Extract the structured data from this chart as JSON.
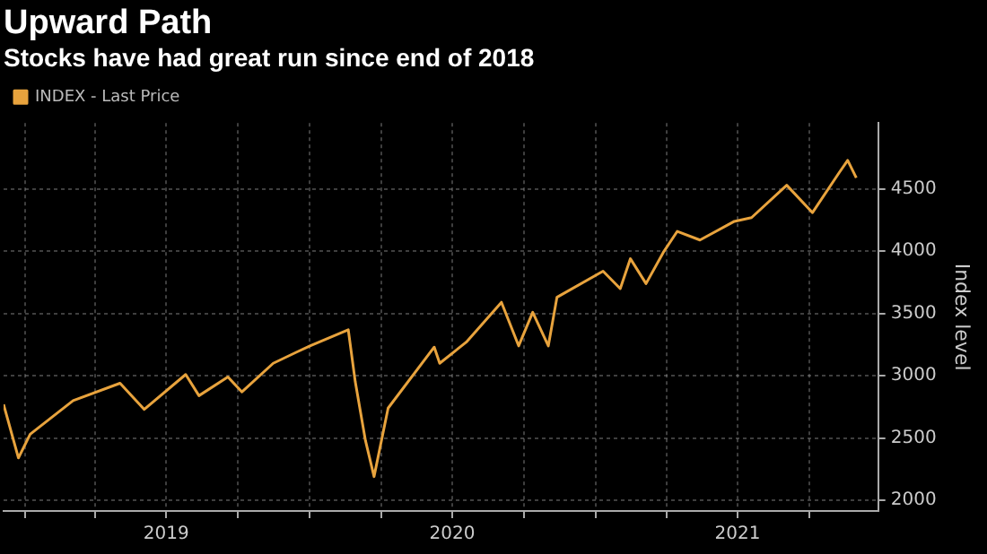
{
  "chart_data": {
    "type": "line",
    "title": "Upward Path",
    "subtitle": "Stocks have had great run since end of 2018",
    "ylabel": "Index level",
    "legend": "top left",
    "grid": true,
    "marker": "none",
    "line_style": "solid",
    "xlim": [
      "2018-12-05",
      "2021-12-28"
    ],
    "xticks": [
      {
        "value": "2019-01-01",
        "label": null
      },
      {
        "value": "2019-04-01",
        "label": null
      },
      {
        "value": "2019-07-01",
        "label": "2019"
      },
      {
        "value": "2019-10-01",
        "label": null
      },
      {
        "value": "2020-01-01",
        "label": null
      },
      {
        "value": "2020-04-01",
        "label": null
      },
      {
        "value": "2020-07-01",
        "label": "2020"
      },
      {
        "value": "2020-10-01",
        "label": null
      },
      {
        "value": "2021-01-01",
        "label": null
      },
      {
        "value": "2021-04-01",
        "label": null
      },
      {
        "value": "2021-07-01",
        "label": "2021"
      },
      {
        "value": "2021-10-01",
        "label": null
      }
    ],
    "ylim": [
      1914,
      5030
    ],
    "yticks": [
      2000,
      2500,
      3000,
      3500,
      4000,
      4500
    ],
    "x": [
      "2018-12-05",
      "2018-12-24",
      "2019-01-08",
      "2019-03-04",
      "2019-05-03",
      "2019-06-03",
      "2019-07-26",
      "2019-08-12",
      "2019-09-18",
      "2019-10-06",
      "2019-11-15",
      "2019-12-15",
      "2020-01-01",
      "2020-02-19",
      "2020-02-28",
      "2020-03-12",
      "2020-03-23",
      "2020-04-10",
      "2020-06-08",
      "2020-06-15",
      "2020-07-19",
      "2020-09-02",
      "2020-09-24",
      "2020-10-12",
      "2020-11-01",
      "2020-11-12",
      "2021-01-10",
      "2021-02-01",
      "2021-02-14",
      "2021-03-06",
      "2021-03-28",
      "2021-04-15",
      "2021-05-14",
      "2021-06-27",
      "2021-07-19",
      "2021-09-02",
      "2021-10-05",
      "2021-11-08",
      "2021-11-19",
      "2021-11-30"
    ],
    "series": [
      {
        "name": "INDEX - Last Price",
        "color": "#e8a33d",
        "values": [
          2770,
          2340,
          2530,
          2800,
          2940,
          2730,
          3010,
          2840,
          2990,
          2870,
          3100,
          3190,
          3240,
          3370,
          2950,
          2480,
          2190,
          2740,
          3230,
          3100,
          3270,
          3590,
          3240,
          3510,
          3240,
          3630,
          3840,
          3700,
          3940,
          3740,
          3990,
          4160,
          4090,
          4240,
          4270,
          4530,
          4310,
          4630,
          4730,
          4590
        ]
      }
    ]
  }
}
